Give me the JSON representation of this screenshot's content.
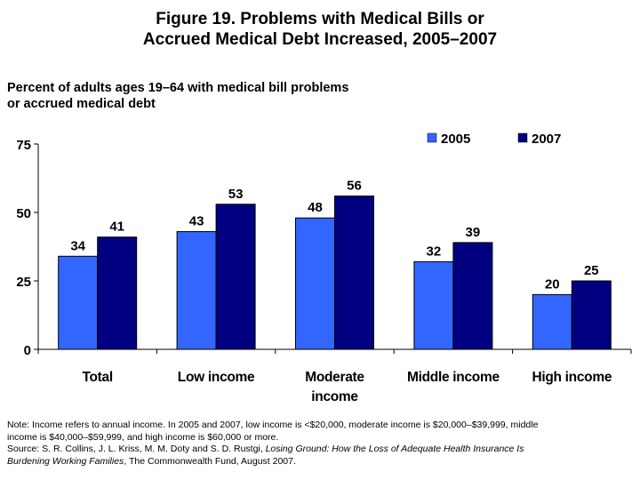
{
  "title": {
    "line1": "Figure 19. Problems with Medical Bills or",
    "line2": "Accrued Medical Debt Increased, 2005–2007"
  },
  "subtitle": {
    "line1": "Percent of adults ages 19–64 with medical bill problems",
    "line2": "or accrued medical debt"
  },
  "chart_data": {
    "type": "bar",
    "title": "Figure 19. Problems with Medical Bills or Accrued Medical Debt Increased, 2005–2007",
    "ylabel": "Percent of adults ages 19–64 with medical bill problems or accrued medical debt",
    "categories": [
      [
        "Total"
      ],
      [
        "Low income"
      ],
      [
        "Moderate",
        "income"
      ],
      [
        "Middle income"
      ],
      [
        "High income"
      ]
    ],
    "series": [
      {
        "name": "2005",
        "color": "#3366FF",
        "values": [
          34,
          43,
          48,
          32,
          20
        ]
      },
      {
        "name": "2007",
        "color": "#000080",
        "values": [
          41,
          53,
          56,
          39,
          25
        ]
      }
    ],
    "ylim": [
      0,
      75
    ],
    "yticks": [
      0,
      25,
      50,
      75
    ],
    "grid": false,
    "legend": "top-right",
    "data_labels": true
  },
  "footnote": {
    "line1": "Note: Income refers to annual income. In 2005 and 2007, low income is <$20,000, moderate income is $20,000–$39,999, middle",
    "line2": "income is $40,000–$59,999, and high income is $60,000 or more.",
    "line3_pre": "Source: S. R. Collins, J. L. Kriss, M. M. Doty and S. D. Rustgi, ",
    "line3_italic": "Losing Ground: How the Loss of Adequate Health Insurance Is",
    "line4_italic": "Burdening Working Families",
    "line4_post": ", The Commonwealth Fund, August 2007."
  }
}
